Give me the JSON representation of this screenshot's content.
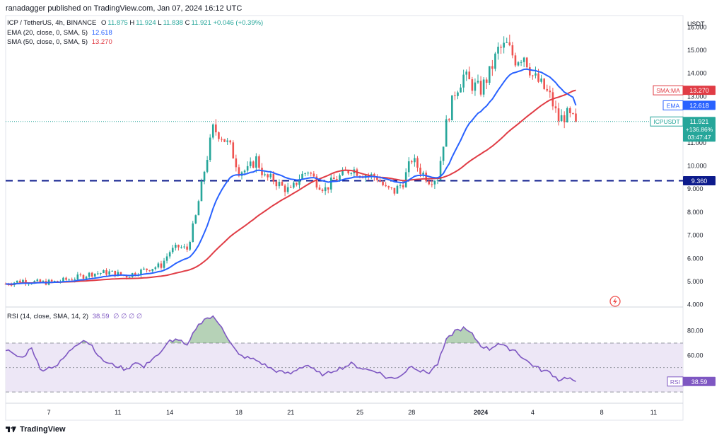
{
  "header": {
    "publisher": "ranadagger published on TradingView.com, Jan 07, 2024 16:12 UTC"
  },
  "legend": {
    "symbol_line": "ICP / TetherUS, 4h, BINANCE",
    "o_label": "O",
    "o": "11.875",
    "h_label": "H",
    "h": "11.924",
    "l_label": "L",
    "l": "11.838",
    "c_label": "C",
    "c": "11.921",
    "change": "+0.046 (+0.39%)",
    "ema_name": "EMA (20, close, 0, SMA, 5)",
    "ema_value": "12.618",
    "sma_name": "SMA (50, close, 0, SMA, 5)",
    "sma_value": "13.270",
    "rsi_name": "RSI (14, close, SMA, 14, 2)",
    "rsi_value": "38.59",
    "rsi_nulls": "∅ ∅ ∅ ∅"
  },
  "axis": {
    "currency": "USDT"
  },
  "badges": {
    "sma_label": "SMA:MA",
    "sma_value": "13.270",
    "ema_label": "EMA",
    "ema_value": "12.618",
    "price_label": "ICPUSDT",
    "price_value": "11.921",
    "price_change": "+136.86%",
    "price_timer": "03:47:47",
    "level_value": "9.360",
    "rsi_label": "RSI",
    "rsi_value": "38.59"
  },
  "footer": {
    "brand": "TradingView"
  },
  "colors": {
    "up": "#26a69a",
    "down": "#ef5350",
    "ema": "#2962ff",
    "sma": "#e03c45",
    "rsi": "#7e57c2",
    "level": "#0d1b8c",
    "rsi_fill": "#ede7f6",
    "rsi_ob": "#2e7d32"
  },
  "chart_data": {
    "type": "candlestick",
    "title": "ICP / TetherUS, 4h, BINANCE",
    "price_axis": {
      "ylim": [
        3.9,
        16.5
      ],
      "ticks": [
        16,
        15,
        14,
        13,
        12,
        11,
        10,
        9,
        8,
        7,
        6,
        5,
        4
      ],
      "tick_labels": [
        "16.000",
        "15.000",
        "14.000",
        "13.000",
        "12.000",
        "11.000",
        "10.000",
        "9.000",
        "8.000",
        "7.000",
        "6.000",
        "5.000",
        "4.000"
      ]
    },
    "x_axis": {
      "tick_labels": [
        "7",
        "11",
        "14",
        "18",
        "21",
        "25",
        "28",
        "2024",
        "4",
        "8",
        "11"
      ],
      "tick_days": [
        7,
        11,
        14,
        18,
        21,
        25,
        28,
        32,
        35,
        39,
        42
      ],
      "first_day": 4.5
    },
    "support_level": 9.36,
    "last_price": 11.921,
    "ema_last": 12.618,
    "sma_last": 13.27,
    "close_anchors": [
      [
        4.5,
        4.9
      ],
      [
        5.5,
        5.05
      ],
      [
        6.5,
        4.95
      ],
      [
        7.5,
        5.0
      ],
      [
        8.5,
        5.15
      ],
      [
        9.5,
        5.35
      ],
      [
        10.5,
        5.4
      ],
      [
        11.5,
        5.25
      ],
      [
        12.5,
        5.5
      ],
      [
        13.5,
        5.7
      ],
      [
        14,
        6.3
      ],
      [
        14.5,
        6.5
      ],
      [
        15,
        6.4
      ],
      [
        15.5,
        7.8
      ],
      [
        16,
        9.8
      ],
      [
        16.5,
        11.6
      ],
      [
        17,
        11.3
      ],
      [
        17.5,
        10.8
      ],
      [
        18,
        9.8
      ],
      [
        18.5,
        9.8
      ],
      [
        19,
        10.3
      ],
      [
        19.5,
        9.5
      ],
      [
        20,
        9.4
      ],
      [
        20.5,
        9.1
      ],
      [
        21,
        8.9
      ],
      [
        21.5,
        9.5
      ],
      [
        22,
        9.8
      ],
      [
        22.5,
        9.3
      ],
      [
        23,
        9.0
      ],
      [
        23.5,
        9.4
      ],
      [
        24,
        9.6
      ],
      [
        24.5,
        9.9
      ],
      [
        25,
        9.7
      ],
      [
        25.5,
        9.6
      ],
      [
        26,
        9.5
      ],
      [
        26.5,
        9.0
      ],
      [
        27,
        8.9
      ],
      [
        27.5,
        9.3
      ],
      [
        28,
        10.3
      ],
      [
        28.5,
        9.8
      ],
      [
        29,
        9.4
      ],
      [
        29.5,
        9.5
      ],
      [
        30,
        11.8
      ],
      [
        30.5,
        13.2
      ],
      [
        31,
        13.9
      ],
      [
        31.5,
        13.5
      ],
      [
        32,
        13.3
      ],
      [
        32.5,
        14.0
      ],
      [
        33,
        15.0
      ],
      [
        33.5,
        15.2
      ],
      [
        34,
        14.6
      ],
      [
        34.5,
        14.8
      ],
      [
        35,
        13.9
      ],
      [
        35.5,
        13.5
      ],
      [
        36,
        13.0
      ],
      [
        36.5,
        12.0
      ],
      [
        37,
        12.2
      ],
      [
        37.5,
        11.92
      ]
    ],
    "rsi": {
      "ylim": [
        22,
        96
      ],
      "ticks": [
        80,
        60
      ],
      "overbought": 70,
      "oversold": 30,
      "mid": 50,
      "last": 38.59,
      "anchors": [
        [
          4.5,
          65
        ],
        [
          5,
          60
        ],
        [
          5.5,
          58
        ],
        [
          6,
          67
        ],
        [
          6.5,
          48
        ],
        [
          7,
          50
        ],
        [
          7.5,
          52
        ],
        [
          8,
          60
        ],
        [
          8.5,
          68
        ],
        [
          9,
          73
        ],
        [
          9.5,
          68
        ],
        [
          10,
          57
        ],
        [
          10.5,
          53
        ],
        [
          11,
          51
        ],
        [
          11.5,
          48
        ],
        [
          12,
          55
        ],
        [
          12.5,
          50
        ],
        [
          13,
          58
        ],
        [
          13.5,
          62
        ],
        [
          14,
          72
        ],
        [
          14.5,
          73
        ],
        [
          15,
          67
        ],
        [
          15.5,
          82
        ],
        [
          16,
          90
        ],
        [
          16.5,
          91
        ],
        [
          17,
          84
        ],
        [
          17.5,
          70
        ],
        [
          18,
          60
        ],
        [
          18.5,
          58
        ],
        [
          19,
          56
        ],
        [
          19.5,
          52
        ],
        [
          20,
          48
        ],
        [
          20.5,
          46
        ],
        [
          21,
          45
        ],
        [
          21.5,
          50
        ],
        [
          22,
          52
        ],
        [
          22.5,
          46
        ],
        [
          23,
          44
        ],
        [
          23.5,
          48
        ],
        [
          24,
          50
        ],
        [
          24.5,
          53
        ],
        [
          25,
          50
        ],
        [
          25.5,
          48
        ],
        [
          26,
          47
        ],
        [
          26.5,
          42
        ],
        [
          27,
          41
        ],
        [
          27.5,
          45
        ],
        [
          28,
          52
        ],
        [
          28.5,
          47
        ],
        [
          29,
          46
        ],
        [
          29.5,
          53
        ],
        [
          30,
          72
        ],
        [
          30.5,
          80
        ],
        [
          31,
          82
        ],
        [
          31.5,
          77
        ],
        [
          32,
          68
        ],
        [
          32.5,
          65
        ],
        [
          33,
          70
        ],
        [
          33.5,
          66
        ],
        [
          34,
          64
        ],
        [
          34.5,
          57
        ],
        [
          35,
          52
        ],
        [
          35.5,
          48
        ],
        [
          36,
          46
        ],
        [
          36.5,
          40
        ],
        [
          37,
          42
        ],
        [
          37.5,
          38.59
        ]
      ]
    }
  }
}
